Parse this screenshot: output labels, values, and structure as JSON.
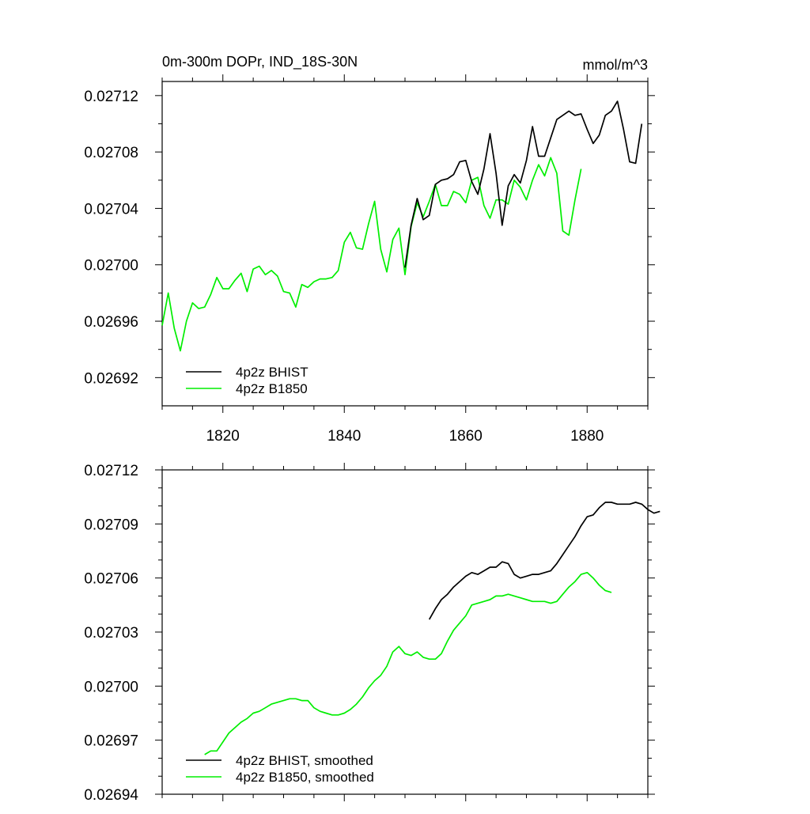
{
  "chart_data": [
    {
      "type": "line",
      "title": "0m-300m DOPr, IND_18S-30N",
      "units": "mmol/m^3",
      "xlim": [
        1810,
        1890
      ],
      "ylim": [
        0.0269,
        0.02713
      ],
      "xticks": [
        1820,
        1840,
        1860,
        1880
      ],
      "xtick_labels": [
        "1820",
        "1840",
        "1860",
        "1880"
      ],
      "yticks": [
        0.02692,
        0.02696,
        0.027,
        0.02704,
        0.02708,
        0.02712
      ],
      "ytick_labels": [
        "0.02692",
        "0.02696",
        "0.02700",
        "0.02704",
        "0.02708",
        "0.02712"
      ],
      "legend": {
        "placement": "bottom-left"
      },
      "series": [
        {
          "name": "4p2z BHIST",
          "color": "#000000",
          "x_start": 1850,
          "values": [
            0.026998,
            0.027028,
            0.027047,
            0.027032,
            0.027035,
            0.027057,
            0.02706,
            0.027061,
            0.027064,
            0.027073,
            0.027074,
            0.027059,
            0.02705,
            0.027068,
            0.027093,
            0.027065,
            0.027028,
            0.027056,
            0.027064,
            0.027058,
            0.027074,
            0.027098,
            0.027077,
            0.027077,
            0.02709,
            0.027103,
            0.027106,
            0.027109,
            0.027106,
            0.027107,
            0.027096,
            0.027086,
            0.027092,
            0.027106,
            0.027109,
            0.027116,
            0.027096,
            0.027073,
            0.027072,
            0.0271
          ]
        },
        {
          "name": "4p2z B1850",
          "color": "#00ee00",
          "x_start": 1810,
          "values": [
            0.026957,
            0.02698,
            0.026955,
            0.026939,
            0.02696,
            0.026973,
            0.026969,
            0.02697,
            0.026979,
            0.026991,
            0.026983,
            0.026983,
            0.026989,
            0.026994,
            0.026981,
            0.026997,
            0.026999,
            0.026993,
            0.026996,
            0.026992,
            0.026981,
            0.02698,
            0.02697,
            0.026986,
            0.026984,
            0.026988,
            0.02699,
            0.02699,
            0.026991,
            0.026996,
            0.027016,
            0.027023,
            0.027012,
            0.027011,
            0.027029,
            0.027045,
            0.027011,
            0.026995,
            0.027018,
            0.027026,
            0.026993,
            0.027027,
            0.027044,
            0.027034,
            0.027045,
            0.027057,
            0.027042,
            0.027042,
            0.027052,
            0.02705,
            0.027044,
            0.02706,
            0.027062,
            0.027042,
            0.027033,
            0.027046,
            0.027046,
            0.027043,
            0.02706,
            0.027055,
            0.027046,
            0.02706,
            0.027071,
            0.027063,
            0.027076,
            0.027065,
            0.027024,
            0.027021,
            0.027046,
            0.027068
          ]
        }
      ]
    },
    {
      "type": "line",
      "title": "",
      "xlim": [
        1810,
        1890
      ],
      "ylim": [
        0.02694,
        0.02712
      ],
      "xticks": [
        1820,
        1840,
        1860,
        1880
      ],
      "yticks": [
        0.02694,
        0.02697,
        0.027,
        0.02703,
        0.02706,
        0.02709,
        0.02712
      ],
      "ytick_labels": [
        "0.02694",
        "0.02697",
        "0.02700",
        "0.02703",
        "0.02706",
        "0.02709",
        "0.02712"
      ],
      "legend": {
        "placement": "bottom-left"
      },
      "series": [
        {
          "name": "4p2z BHIST, smoothed",
          "color": "#000000",
          "x_start": 1854,
          "values": [
            0.027037,
            0.027043,
            0.027048,
            0.027051,
            0.027055,
            0.027058,
            0.027061,
            0.027063,
            0.027062,
            0.027064,
            0.027066,
            0.027066,
            0.027069,
            0.027068,
            0.027062,
            0.02706,
            0.027061,
            0.027062,
            0.027062,
            0.027063,
            0.027064,
            0.027068,
            0.027073,
            0.027078,
            0.027083,
            0.027089,
            0.027094,
            0.027095,
            0.027099,
            0.027102,
            0.027102,
            0.027101,
            0.027101,
            0.027101,
            0.027102,
            0.027101,
            0.027098,
            0.027096,
            0.027097
          ]
        },
        {
          "name": "4p2z B1850, smoothed",
          "color": "#00ee00",
          "x_start": 1817,
          "values": [
            0.026962,
            0.026964,
            0.026964,
            0.026969,
            0.026974,
            0.026977,
            0.02698,
            0.026982,
            0.026985,
            0.026986,
            0.026988,
            0.02699,
            0.026991,
            0.026992,
            0.026993,
            0.026993,
            0.026992,
            0.026992,
            0.026988,
            0.026986,
            0.026985,
            0.026984,
            0.026984,
            0.026985,
            0.026987,
            0.02699,
            0.026994,
            0.026999,
            0.027003,
            0.027006,
            0.027011,
            0.027019,
            0.027022,
            0.027018,
            0.027017,
            0.027019,
            0.027016,
            0.027015,
            0.027015,
            0.027018,
            0.027025,
            0.027031,
            0.027035,
            0.027039,
            0.027045,
            0.027046,
            0.027047,
            0.027048,
            0.02705,
            0.02705,
            0.027051,
            0.02705,
            0.027049,
            0.027048,
            0.027047,
            0.027047,
            0.027047,
            0.027046,
            0.027047,
            0.027051,
            0.027055,
            0.027058,
            0.027062,
            0.027063,
            0.02706,
            0.027056,
            0.027053,
            0.027052
          ]
        }
      ]
    }
  ]
}
